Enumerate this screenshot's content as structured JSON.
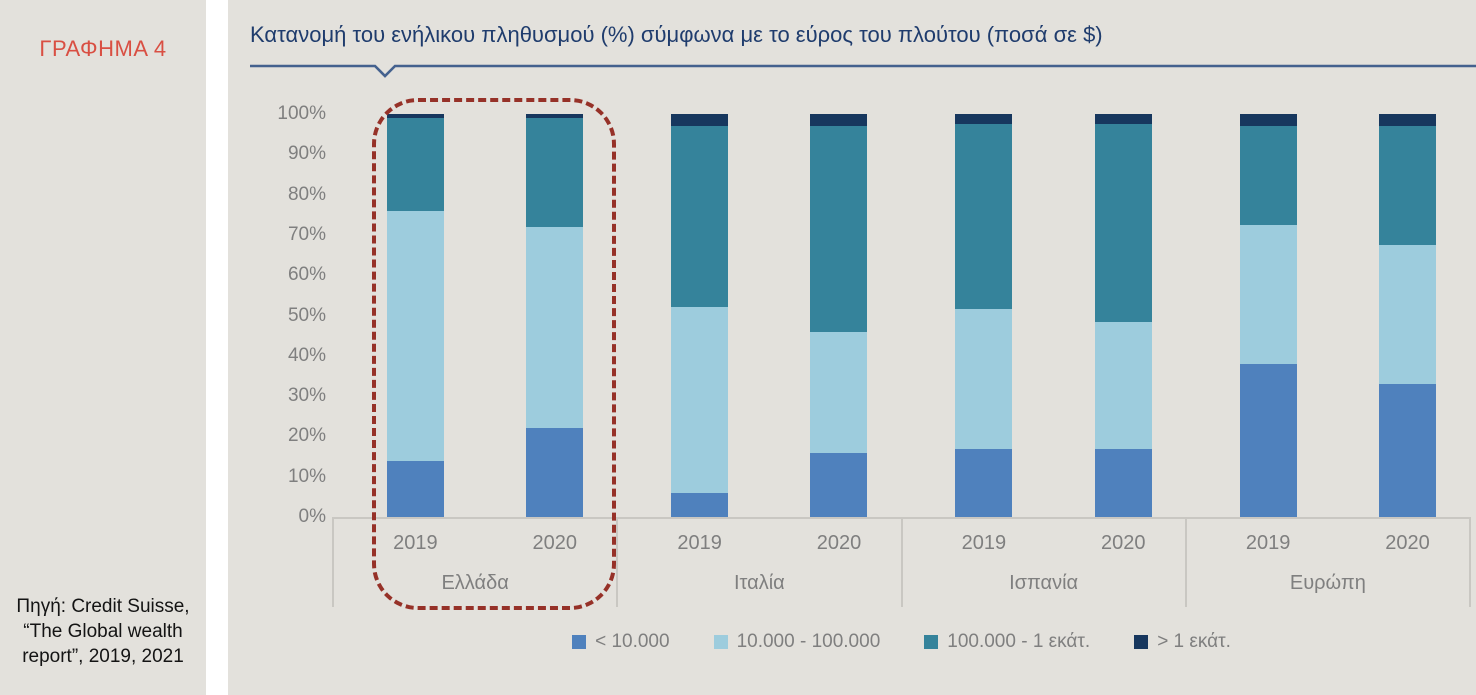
{
  "sidebar": {
    "figure_label": "ΓΡΑΦΗΜΑ 4",
    "source": "Πηγή: Credit Suisse, “The Global wealth report”, 2019, 2021"
  },
  "chart": {
    "title": "Κατανομή του ενήλικου πληθυσμού (%) σύμφωνα με το εύρος του πλούτου (ποσά σε $)"
  },
  "colors": {
    "figure_label_red": "#d94f43",
    "highlight_border_red": "#963128",
    "title_blue": "#1f3c6d",
    "underline_blue": "#44618e",
    "axis_gray": "#c9c7c2",
    "label_gray": "#7f7f7f",
    "panel_background": "#e3e1dc"
  },
  "chart_data": {
    "type": "bar",
    "stacked": true,
    "title": "Κατανομή του ενήλικου πληθυσμού (%) σύμφωνα με το εύρος του πλούτου (ποσά σε $)",
    "ylim": [
      0,
      100
    ],
    "ytick_labels": [
      "0%",
      "10%",
      "20%",
      "30%",
      "40%",
      "50%",
      "60%",
      "70%",
      "80%",
      "90%",
      "100%"
    ],
    "grid": false,
    "legend_position": "bottom",
    "series_names": [
      "< 10.000",
      "10.000 - 100.000",
      "100.000 - 1 εκάτ.",
      "> 1 εκάτ."
    ],
    "series_colors": [
      "#4f81bd",
      "#9dccdd",
      "#35839b",
      "#17375e"
    ],
    "years": [
      "2019",
      "2020"
    ],
    "groups": [
      {
        "label": "Ελλάδα",
        "highlighted": true,
        "bars": [
          {
            "year": "2019",
            "values": [
              14,
              62,
              23,
              1
            ]
          },
          {
            "year": "2020",
            "values": [
              22,
              50,
              27,
              1
            ]
          }
        ]
      },
      {
        "label": "Ιταλία",
        "highlighted": false,
        "bars": [
          {
            "year": "2019",
            "values": [
              6,
              46,
              45,
              3
            ]
          },
          {
            "year": "2020",
            "values": [
              16,
              30,
              51,
              3
            ]
          }
        ]
      },
      {
        "label": "Ισπανία",
        "highlighted": false,
        "bars": [
          {
            "year": "2019",
            "values": [
              17,
              34.5,
              46,
              2.5
            ]
          },
          {
            "year": "2020",
            "values": [
              17,
              31.5,
              49,
              2.5
            ]
          }
        ]
      },
      {
        "label": "Ευρώπη",
        "highlighted": false,
        "bars": [
          {
            "year": "2019",
            "values": [
              38,
              34.5,
              24.5,
              3
            ]
          },
          {
            "year": "2020",
            "values": [
              33,
              34.5,
              29.5,
              3
            ]
          }
        ]
      }
    ]
  }
}
